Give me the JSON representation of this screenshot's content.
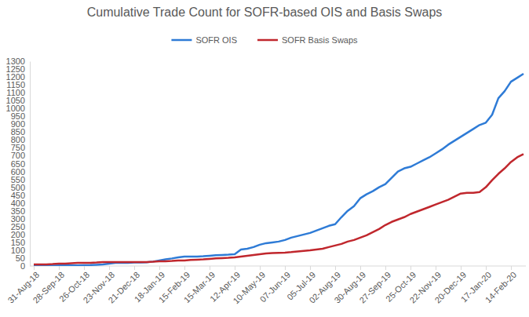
{
  "chart_data": {
    "type": "line",
    "title": "Cumulative Trade Count for SOFR-based OIS and Basis Swaps",
    "categories": [
      "31-Aug-18",
      null,
      null,
      null,
      "28-Sep-18",
      null,
      null,
      null,
      "26-Oct-18",
      null,
      null,
      null,
      "23-Nov-18",
      null,
      null,
      null,
      "21-Dec-18",
      null,
      null,
      null,
      "18-Jan-19",
      null,
      null,
      null,
      "15-Feb-19",
      null,
      null,
      null,
      "15-Mar-19",
      null,
      null,
      null,
      "12-Apr-19",
      null,
      null,
      null,
      "10-May-19",
      null,
      null,
      null,
      "07-Jun-19",
      null,
      null,
      null,
      "05-Jul-19",
      null,
      null,
      null,
      "02-Aug-19",
      null,
      null,
      null,
      "30-Aug-19",
      null,
      null,
      null,
      "27-Sep-19",
      null,
      null,
      null,
      "25-Oct-19",
      null,
      null,
      null,
      "22-Nov-19",
      null,
      null,
      null,
      "20-Dec-19",
      null,
      null,
      null,
      "17-Jan-20",
      null,
      null,
      null,
      "14-Feb-20",
      null,
      null
    ],
    "series": [
      {
        "name": "SOFR OIS",
        "color": "#2E7BD6",
        "values": [
          3,
          3,
          3,
          3,
          4,
          4,
          4,
          4,
          5,
          6,
          8,
          10,
          15,
          20,
          20,
          20,
          22,
          22,
          24,
          28,
          35,
          42,
          48,
          55,
          60,
          60,
          60,
          62,
          65,
          68,
          70,
          72,
          75,
          105,
          110,
          120,
          135,
          145,
          150,
          155,
          165,
          180,
          190,
          200,
          210,
          225,
          240,
          255,
          265,
          310,
          350,
          380,
          430,
          455,
          475,
          500,
          520,
          560,
          600,
          620,
          630,
          650,
          670,
          690,
          715,
          740,
          770,
          795,
          820,
          845,
          870,
          895,
          910,
          960,
          1065,
          1110,
          1170,
          1195,
          1220
        ]
      },
      {
        "name": "SOFR Basis Swaps",
        "color": "#C0272D",
        "values": [
          10,
          10,
          10,
          12,
          15,
          15,
          18,
          20,
          20,
          20,
          22,
          25,
          25,
          25,
          25,
          25,
          25,
          25,
          25,
          27,
          30,
          30,
          32,
          35,
          35,
          38,
          40,
          42,
          45,
          48,
          50,
          52,
          55,
          60,
          65,
          70,
          75,
          80,
          82,
          84,
          85,
          88,
          92,
          96,
          100,
          105,
          110,
          120,
          130,
          140,
          155,
          165,
          180,
          195,
          215,
          235,
          260,
          280,
          295,
          310,
          330,
          345,
          360,
          375,
          390,
          405,
          420,
          440,
          460,
          465,
          465,
          470,
          500,
          545,
          585,
          620,
          660,
          690,
          710
        ]
      }
    ],
    "ylim": [
      0,
      1300
    ],
    "yticks": [
      0,
      50,
      100,
      150,
      200,
      250,
      300,
      350,
      400,
      450,
      500,
      550,
      600,
      650,
      700,
      750,
      800,
      850,
      900,
      950,
      1000,
      1050,
      1100,
      1150,
      1200,
      1250,
      1300
    ],
    "legend": "top",
    "grid": false
  }
}
